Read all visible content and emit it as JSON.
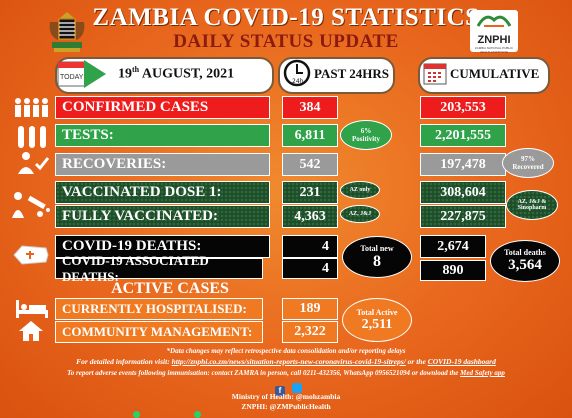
{
  "header": {
    "title": "ZAMBIA COVID-19 STATISTICS",
    "subtitle": "DAILY STATUS UPDATE",
    "logo_text": "ZNPHI",
    "logo_sub": "ZAMBIA NATIONAL PUBLIC HEALTH INSTITUTE"
  },
  "today": {
    "label": "TODAY",
    "date_day": "19",
    "date_suffix": "th",
    "date_rest": " AUGUST, 2021"
  },
  "past24": {
    "label": "PAST 24HRS",
    "clock": "24h"
  },
  "cumulative": {
    "label": "CUMULATIVE"
  },
  "rows": {
    "confirmed": {
      "label": "CONFIRMED CASES",
      "day": "384",
      "cum": "203,553"
    },
    "tests": {
      "label": "TESTS:",
      "day": "6,811",
      "cum": "2,201,555",
      "positivity_pct": "6%",
      "positivity_label": "Positivity"
    },
    "recoveries": {
      "label": "RECOVERIES:",
      "day": "542",
      "cum": "197,478",
      "recovered_pct": "97%",
      "recovered_label": "Recovered"
    },
    "dose1": {
      "label": "VACCINATED DOSE 1:",
      "day": "231",
      "cum": "308,604",
      "note": "AZ only"
    },
    "full": {
      "label": "FULLY VACCINATED:",
      "day": "4,363",
      "cum": "227,875",
      "note": "AZ, J&J"
    },
    "cum_vax_note": "AZ, J&J & Sinopharm",
    "deaths": {
      "label": "COVID-19 DEATHS:",
      "day": "4",
      "cum": "2,674"
    },
    "assoc": {
      "label": "COVID-19 ASSOCIATED DEATHS:",
      "day": "4",
      "cum": "890"
    },
    "total_new_label": "Total new",
    "total_new": "8",
    "total_deaths_label": "Total deaths",
    "total_deaths": "3,564"
  },
  "active": {
    "heading": "ACTIVE CASES",
    "hospital": {
      "label": "CURRENTLY HOSPITALISED:",
      "value": "189"
    },
    "community": {
      "label": "COMMUNITY MANAGEMENT:",
      "value": "2,322"
    },
    "total_label": "Total Active",
    "total": "2,511"
  },
  "footer": {
    "disclaimer": "*Data changes may reflect retrospective data consolidation and/or reporting delays",
    "info_prefix": "For detailed information visit: ",
    "info_link": "http://znphi.co.zm/news/situation-reports-new-coronavirus-covid-19-sitreps/",
    "info_mid": " or the ",
    "info_dash": "COVID-19 dashboard",
    "report": "To report adverse events following immunisation: contact ZAMRA in person, call 0211-432356, WhatsApp 0956521094 or download the ",
    "report_app": "Med Safety app",
    "moh": "Ministry of Health: @mohzambia",
    "znphi": "ZNPHI: @ZMPublicHealth"
  },
  "colors": {
    "bg": "#e8641c",
    "red": "#ee1c1c",
    "green": "#2fa24a",
    "grey": "#9a9a9a",
    "dark_green": "#1f4d2a",
    "black": "#050505",
    "maroon": "#8b1a10"
  }
}
